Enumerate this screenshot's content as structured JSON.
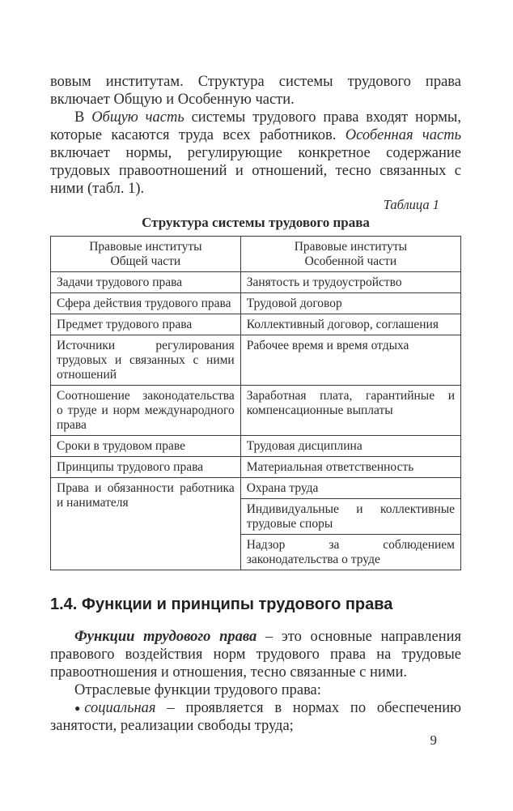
{
  "intro": {
    "paragraphs": [
      {
        "indent": false,
        "segments": [
          {
            "text": "вовым институтам. Структура системы трудового права включает Общую и Особенную части.",
            "style": "normal"
          }
        ]
      },
      {
        "indent": true,
        "segments": [
          {
            "text": "В ",
            "style": "normal"
          },
          {
            "text": "Общую часть",
            "style": "italic"
          },
          {
            "text": " системы трудового права входят нормы, которые касаются труда всех работников. ",
            "style": "normal"
          },
          {
            "text": "Особенная часть",
            "style": "italic"
          },
          {
            "text": " включает нормы, регулирующие конкретное содержание трудовых правоотношений и отношений, тесно связанных с ними (табл. 1).",
            "style": "normal"
          }
        ]
      }
    ]
  },
  "table": {
    "caption": "Таблица 1",
    "title": "Структура системы трудового права",
    "columns": [
      [
        "Правовые институты",
        "Общей части"
      ],
      [
        "Правовые институты",
        "Особенной части"
      ]
    ],
    "rows": [
      {
        "left": "Задачи трудового права",
        "right": [
          "Занятость и трудоустройство"
        ]
      },
      {
        "left": "Сфера действия трудового права",
        "right": [
          "Трудовой договор"
        ]
      },
      {
        "left": "Предмет трудового права",
        "right": [
          "Коллективный договор, соглашения"
        ]
      },
      {
        "left": "Источники регулирования трудовых и связанных с ними отношений",
        "right": [
          "Рабочее время и время отдыха"
        ]
      },
      {
        "left": "Соотношение законодательства о труде и норм международного права",
        "right": [
          "Заработная плата, гарантийные и компенсационные выплаты"
        ]
      },
      {
        "left": "Сроки в трудовом праве",
        "right": [
          "Трудовая дисциплина"
        ]
      },
      {
        "left": "Принципы трудового права",
        "right": [
          "Материальная ответственность"
        ]
      },
      {
        "left": "Права и обязанности работника и нанимателя",
        "right": [
          "Охрана труда",
          "Индивидуальные и коллективные трудовые споры",
          "Надзор за соблюдением законодательства о труде"
        ]
      }
    ]
  },
  "section": {
    "heading": "1.4. Функции и принципы трудового права",
    "paragraphs": [
      {
        "indent": true,
        "segments": [
          {
            "text": "Функции трудового права",
            "style": "bold-italic"
          },
          {
            "text": " – это основные направления правового воздействия норм трудового права на трудовые правоотношения и отношения, тесно связанные с ними.",
            "style": "normal"
          }
        ]
      },
      {
        "indent": true,
        "segments": [
          {
            "text": "Отраслевые функции трудового права:",
            "style": "normal"
          }
        ]
      },
      {
        "indent": true,
        "bullet": "●",
        "segments": [
          {
            "text": "социальная",
            "style": "italic"
          },
          {
            "text": " – проявляется в нормах по обеспечению занятости, реализации свободы труда;",
            "style": "normal"
          }
        ]
      }
    ]
  },
  "page": {
    "number": "9"
  }
}
